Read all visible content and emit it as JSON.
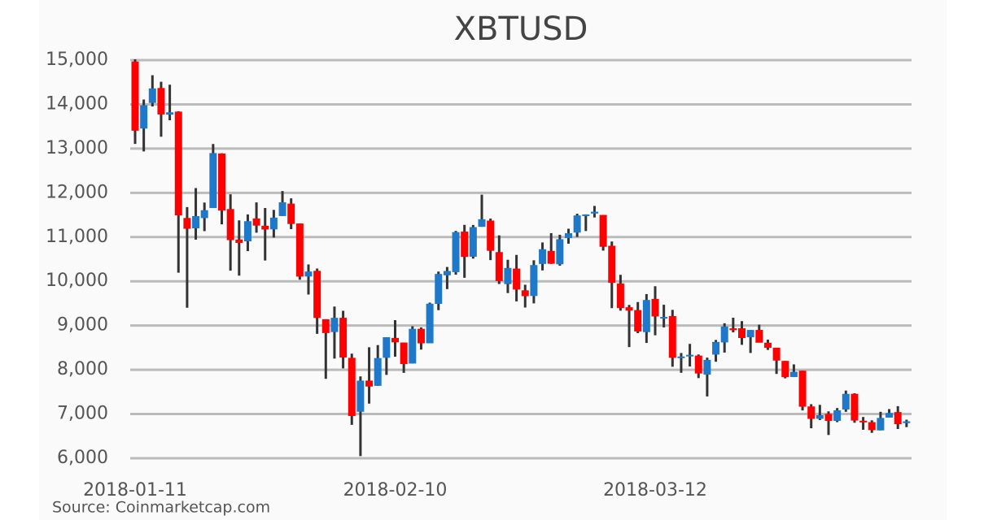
{
  "chart_data": {
    "type": "candlestick",
    "title": "XBTUSD",
    "source": "Source: Coinmarketcap.com",
    "x": [
      "2018-01-11",
      "2018-01-12",
      "2018-01-13",
      "2018-01-14",
      "2018-01-15",
      "2018-01-16",
      "2018-01-17",
      "2018-01-18",
      "2018-01-19",
      "2018-01-20",
      "2018-01-21",
      "2018-01-22",
      "2018-01-23",
      "2018-01-24",
      "2018-01-25",
      "2018-01-26",
      "2018-01-27",
      "2018-01-28",
      "2018-01-29",
      "2018-01-30",
      "2018-01-31",
      "2018-02-01",
      "2018-02-02",
      "2018-02-03",
      "2018-02-04",
      "2018-02-05",
      "2018-02-06",
      "2018-02-07",
      "2018-02-08",
      "2018-02-09",
      "2018-02-10",
      "2018-02-11",
      "2018-02-12",
      "2018-02-13",
      "2018-02-14",
      "2018-02-15",
      "2018-02-16",
      "2018-02-17",
      "2018-02-18",
      "2018-02-19",
      "2018-02-20",
      "2018-02-21",
      "2018-02-22",
      "2018-02-23",
      "2018-02-24",
      "2018-02-25",
      "2018-02-26",
      "2018-02-27",
      "2018-02-28",
      "2018-03-01",
      "2018-03-02",
      "2018-03-03",
      "2018-03-04",
      "2018-03-05",
      "2018-03-06",
      "2018-03-07",
      "2018-03-08",
      "2018-03-09",
      "2018-03-10",
      "2018-03-11",
      "2018-03-12",
      "2018-03-13",
      "2018-03-14",
      "2018-03-15",
      "2018-03-16",
      "2018-03-17",
      "2018-03-18",
      "2018-03-19",
      "2018-03-20",
      "2018-03-21",
      "2018-03-22",
      "2018-03-23",
      "2018-03-24",
      "2018-03-25",
      "2018-03-26",
      "2018-03-27",
      "2018-03-28",
      "2018-03-29",
      "2018-03-30",
      "2018-03-31",
      "2018-04-01",
      "2018-04-02",
      "2018-04-03",
      "2018-04-04",
      "2018-04-05",
      "2018-04-06",
      "2018-04-07",
      "2018-04-08",
      "2018-04-09",
      "2018-04-10"
    ],
    "open": [
      14968,
      13453,
      14032,
      14370,
      13767,
      13836,
      11431,
      11198,
      11429,
      11656,
      12889,
      11633,
      10944,
      10904,
      11421,
      11256,
      11174,
      11475,
      11756,
      11307,
      10109,
      10237,
      9142,
      8853,
      9175,
      8270,
      7051,
      7755,
      7637,
      8271,
      8720,
      8616,
      8141,
      8926,
      8599,
      9489,
      10136,
      10208,
      11124,
      10556,
      11232,
      11373,
      10660,
      9937,
      10287,
      9796,
      9669,
      10393,
      10687,
      10385,
      10977,
      11101,
      11497,
      11532,
      11500,
      10803,
      9951,
      9414,
      9350,
      8852,
      9602,
      9173,
      9214,
      8291,
      8322,
      8321,
      7890,
      8344,
      8619,
      8937,
      8939,
      8736,
      8901,
      8612,
      8499,
      8201,
      7836,
      7979,
      7171,
      6892,
      7003,
      6844,
      7102,
      7456,
      6848,
      6816,
      6630,
      6919,
      7044,
      6795
    ],
    "high": [
      15019,
      14109,
      14659,
      14511,
      14445,
      13843,
      11678,
      12107,
      11780,
      13103,
      12895,
      11966,
      11378,
      11512,
      11784,
      11656,
      11614,
      12040,
      11875,
      11307,
      10381,
      10289,
      9142,
      9430,
      9334,
      8364,
      7850,
      8509,
      8558,
      8736,
      9122,
      8616,
      8985,
      8958,
      9518,
      10220,
      10324,
      11139,
      11275,
      11274,
      11958,
      11418,
      11039,
      10487,
      10597,
      9923,
      10475,
      10878,
      11089,
      11052,
      11189,
      11528,
      11512,
      11704,
      11500,
      10900,
      10147,
      9466,
      9531,
      9711,
      9889,
      9470,
      9355,
      8379,
      8585,
      8346,
      8275,
      8675,
      9051,
      9177,
      9100,
      8899,
      9020,
      8682,
      8499,
      8201,
      8122,
      7980,
      7222,
      7207,
      7060,
      7135,
      7530,
      7469,
      6933,
      6857,
      7050,
      7111,
      7178,
      6872
    ],
    "low": [
      13105,
      12936,
      13952,
      13268,
      13641,
      10194,
      9402,
      10942,
      11134,
      11656,
      11288,
      10241,
      10129,
      10683,
      11099,
      10470,
      10989,
      11475,
      11179,
      10036,
      9701,
      8812,
      7796,
      8252,
      8031,
      6756,
      6048,
      7236,
      7637,
      7884,
      8295,
      7931,
      8141,
      8456,
      8599,
      9347,
      9824,
      10149,
      10080,
      10513,
      11232,
      10479,
      9939,
      9734,
      9546,
      9407,
      9501,
      10246,
      10393,
      10352,
      10850,
      11002,
      11136,
      11443,
      10694,
      9394,
      9336,
      8513,
      8828,
      8607,
      8780,
      8958,
      8068,
      7932,
      8074,
      7812,
      7397,
      8182,
      8389,
      8846,
      8564,
      8380,
      8665,
      8449,
      7906,
      7807,
      7836,
      7081,
      6678,
      6864,
      6526,
      6816,
      7050,
      6803,
      6644,
      6575,
      6630,
      6919,
      6661,
      6704
    ],
    "close": [
      13405,
      13980,
      14360,
      13772,
      13820,
      11490,
      11188,
      11474,
      11607,
      12899,
      11600,
      10931,
      10868,
      11359,
      11259,
      11171,
      11440,
      11786,
      11296,
      10106,
      10221,
      9171,
      8831,
      9175,
      8277,
      6955,
      7754,
      7621,
      8265,
      8736,
      8621,
      8129,
      8926,
      8598,
      9494,
      10166,
      10233,
      11112,
      10552,
      11225,
      11403,
      10690,
      10005,
      10302,
      9813,
      9664,
      10367,
      10725,
      10397,
      10951,
      11087,
      11489,
      11512,
      11573,
      10780,
      9965,
      9395,
      9337,
      8866,
      9578,
      9205,
      9194,
      8270,
      8300,
      8338,
      7916,
      8224,
      8630,
      8979,
      8895,
      8718,
      8900,
      8612,
      8495,
      8209,
      7833,
      7954,
      7165,
      6890,
      6973,
      6844,
      7083,
      7456,
      6853,
      6811,
      6636,
      6911,
      7023,
      6770,
      6834
    ],
    "up_color": "#1f78c8",
    "down_color": "#ff0000",
    "xticks": [
      "2018-01-11",
      "2018-02-10",
      "2018-03-12"
    ],
    "ylim": [
      6000,
      15000
    ],
    "yticks": [
      {
        "value": 6000,
        "label": "6,000"
      },
      {
        "value": 7000,
        "label": "7,000"
      },
      {
        "value": 8000,
        "label": "8,000"
      },
      {
        "value": 9000,
        "label": "9,000"
      },
      {
        "value": 10000,
        "label": "10,000"
      },
      {
        "value": 11000,
        "label": "11,000"
      },
      {
        "value": 12000,
        "label": "12,000"
      },
      {
        "value": 13000,
        "label": "13,000"
      },
      {
        "value": 14000,
        "label": "14,000"
      },
      {
        "value": 15000,
        "label": "15,000"
      }
    ],
    "grid": true
  }
}
